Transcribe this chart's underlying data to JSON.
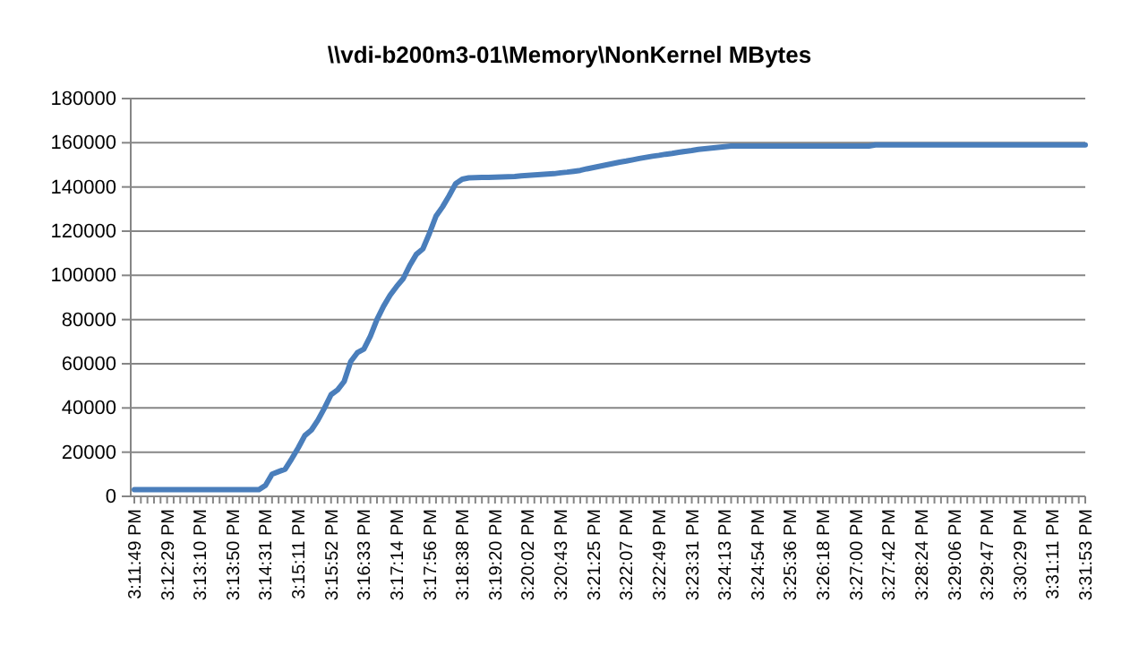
{
  "chart_data": {
    "type": "line",
    "title": "\\\\vdi-b200m3-01\\Memory\\NonKernel MBytes",
    "categories": [
      "3:11:49 PM",
      null,
      null,
      null,
      null,
      "3:12:29 PM",
      null,
      null,
      null,
      null,
      "3:13:10 PM",
      null,
      null,
      null,
      null,
      "3:13:50 PM",
      null,
      null,
      null,
      null,
      "3:14:31 PM",
      null,
      null,
      null,
      null,
      "3:15:11 PM",
      null,
      null,
      null,
      null,
      "3:15:52 PM",
      null,
      null,
      null,
      null,
      "3:16:33 PM",
      null,
      null,
      null,
      null,
      "3:17:14 PM",
      null,
      null,
      null,
      null,
      "3:17:56 PM",
      null,
      null,
      null,
      null,
      "3:18:38 PM",
      null,
      null,
      null,
      null,
      "3:19:20 PM",
      null,
      null,
      null,
      null,
      "3:20:02 PM",
      null,
      null,
      null,
      null,
      "3:20:43 PM",
      null,
      null,
      null,
      null,
      "3:21:25 PM",
      null,
      null,
      null,
      null,
      "3:22:07 PM",
      null,
      null,
      null,
      null,
      "3:22:49 PM",
      null,
      null,
      null,
      null,
      "3:23:31 PM",
      null,
      null,
      null,
      null,
      "3:24:13 PM",
      null,
      null,
      null,
      null,
      "3:24:54 PM",
      null,
      null,
      null,
      null,
      "3:25:36 PM",
      null,
      null,
      null,
      null,
      "3:26:18 PM",
      null,
      null,
      null,
      null,
      "3:27:00 PM",
      null,
      null,
      null,
      null,
      "3:27:42 PM",
      null,
      null,
      null,
      null,
      "3:28:24 PM",
      null,
      null,
      null,
      null,
      "3:29:06 PM",
      null,
      null,
      null,
      null,
      "3:29:47 PM",
      null,
      null,
      null,
      null,
      "3:30:29 PM",
      null,
      null,
      null,
      null,
      "3:31:11 PM",
      null,
      null,
      null,
      null,
      "3:31:53 PM"
    ],
    "series": [
      {
        "color": "#4a7ebb",
        "values": [
          3000,
          3000,
          3000,
          3000,
          3000,
          3000,
          3000,
          3000,
          3000,
          3000,
          3000,
          3000,
          3000,
          3000,
          3000,
          3000,
          3000,
          3000,
          3000,
          3000,
          5000,
          10000,
          11200,
          12300,
          17000,
          22000,
          27500,
          30000,
          34500,
          40000,
          46000,
          48200,
          52000,
          61000,
          65000,
          66600,
          72500,
          80000,
          86000,
          91000,
          95000,
          98500,
          104500,
          109500,
          112000,
          119000,
          126800,
          131000,
          136000,
          141500,
          143500,
          144100,
          144200,
          144300,
          144300,
          144400,
          144500,
          144600,
          144700,
          145000,
          145200,
          145400,
          145600,
          145800,
          146000,
          146400,
          146700,
          147100,
          147500,
          148200,
          148800,
          149400,
          150000,
          150600,
          151200,
          151700,
          152300,
          152900,
          153400,
          153900,
          154300,
          154800,
          155200,
          155700,
          156100,
          156500,
          157000,
          157300,
          157600,
          157900,
          158200,
          158500,
          158500,
          158500,
          158500,
          158500,
          158500,
          158500,
          158500,
          158500,
          158500,
          158500,
          158500,
          158500,
          158500,
          158500,
          158500,
          158500,
          158500,
          158500,
          158500,
          158500,
          158500,
          159000,
          159000,
          159000,
          159000,
          159000,
          159000,
          159000,
          159000,
          159000,
          159000,
          159000,
          159000,
          159000,
          159000,
          159000,
          159000,
          159000,
          159000,
          159000,
          159000,
          159000,
          159000,
          159000,
          159000,
          159000,
          159000,
          159000,
          159000,
          159000,
          159000,
          159000,
          159000,
          159000
        ]
      }
    ],
    "ylim": [
      0,
      180000
    ],
    "yticks": [
      0,
      20000,
      40000,
      60000,
      80000,
      100000,
      120000,
      140000,
      160000,
      180000
    ],
    "grid": "y"
  }
}
